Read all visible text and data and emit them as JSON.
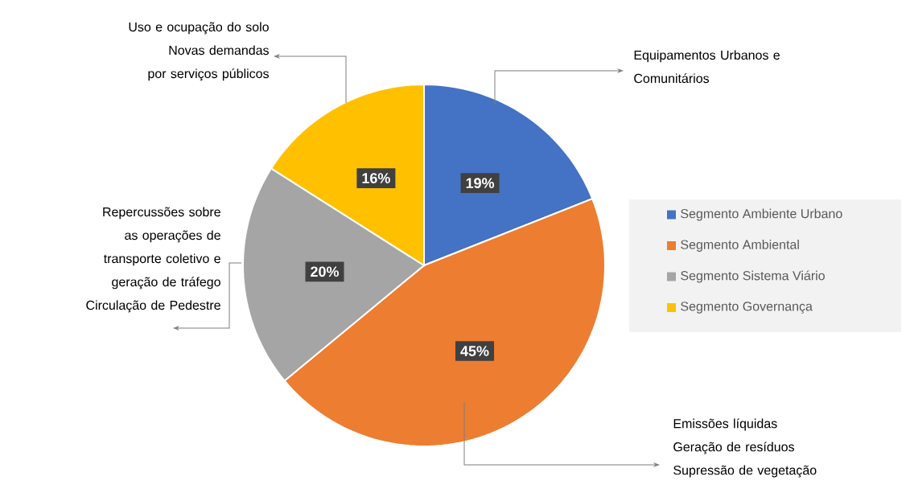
{
  "chart_data": {
    "type": "pie",
    "categories": [
      "Segmento Ambiente Urbano",
      "Segmento Ambiental",
      "Segmento Sistema Viário",
      "Segmento Governança"
    ],
    "values": [
      19,
      45,
      20,
      16
    ],
    "value_labels": [
      "19%",
      "45%",
      "20%",
      "16%"
    ],
    "colors": [
      "#4472c4",
      "#ed7d31",
      "#a5a5a5",
      "#ffc000"
    ],
    "legend": "right",
    "annotations": [
      "Equipamentos Urbanos e Comunitários",
      "Emissões líquidas",
      "Geração de resíduos",
      "Supressão de vegetação",
      "Repercussões sobre as operações de transporte coletivo e geração de tráfego",
      "Circulação de Pedestre",
      "Uso e ocupação do solo",
      "Novas demandas por serviços públicos"
    ]
  }
}
